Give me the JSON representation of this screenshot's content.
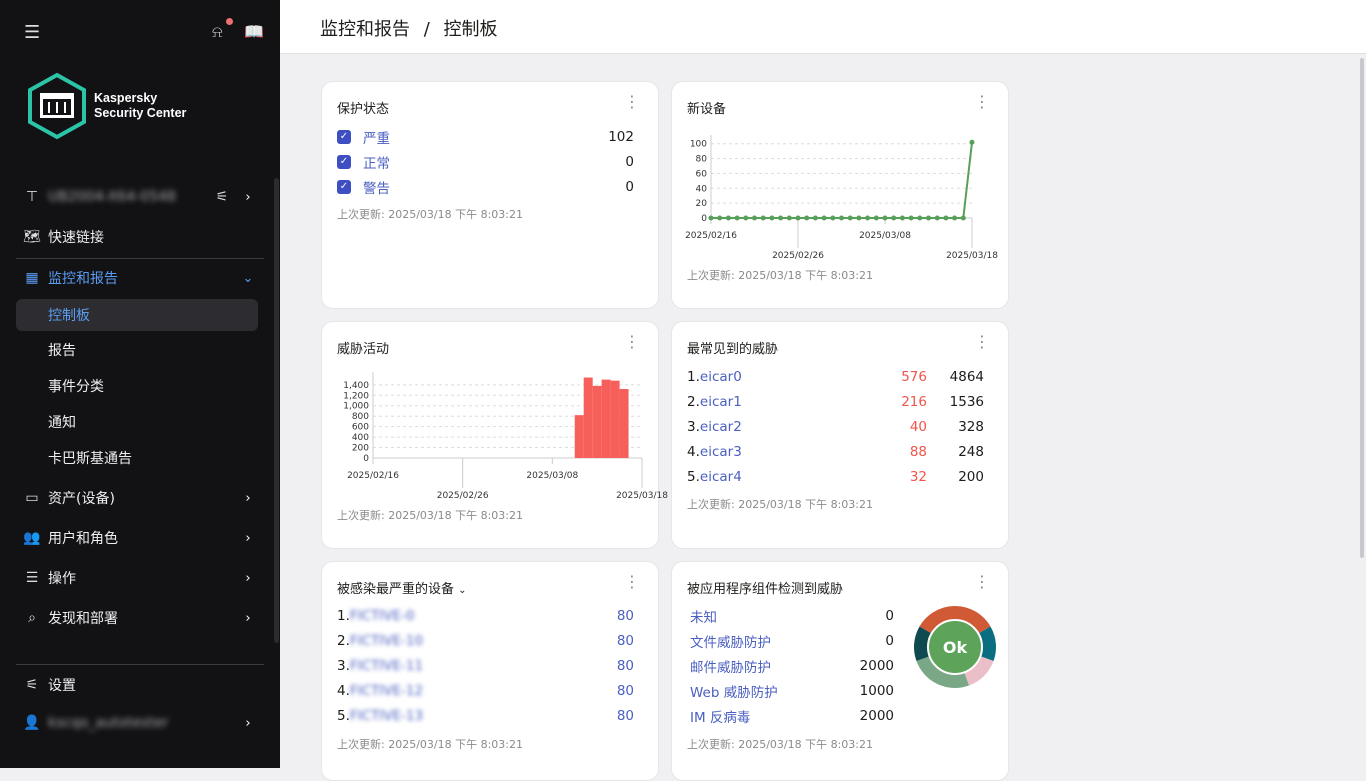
{
  "sidebar": {
    "server": "UB2004-X64-0548",
    "brand": [
      "Kaspersky",
      "Security Center"
    ],
    "items": [
      {
        "label": "快速链接",
        "icon": "map-icon"
      },
      {
        "label": "监控和报告",
        "icon": "dashboard-icon",
        "expanded": true
      },
      {
        "label": "控制板",
        "active": true
      },
      {
        "label": "报告"
      },
      {
        "label": "事件分类"
      },
      {
        "label": "通知"
      },
      {
        "label": "卡巴斯基通告"
      },
      {
        "label": "资产(设备)",
        "icon": "monitor-icon"
      },
      {
        "label": "用户和角色",
        "icon": "users-icon"
      },
      {
        "label": "操作",
        "icon": "server-icon"
      },
      {
        "label": "发现和部署",
        "icon": "search-icon"
      },
      {
        "label": "设置",
        "icon": "settings-icon"
      }
    ],
    "user": "kscqo_autotester",
    "accent": "#5b9cf0"
  },
  "header": {
    "breadcrumb": [
      "监控和报告",
      "控制板"
    ],
    "separator": "/"
  },
  "updated": "上次更新:  2025/03/18 下午 8:03:21",
  "protection": {
    "title": "保护状态",
    "rows": [
      {
        "label": "严重",
        "value": "102"
      },
      {
        "label": "正常",
        "value": "0"
      },
      {
        "label": "警告",
        "value": "0"
      }
    ]
  },
  "threats_top": {
    "title": "最常见到的威胁",
    "rows": [
      {
        "n": "1.",
        "name": "eicar0",
        "a": "576",
        "b": "4864"
      },
      {
        "n": "2.",
        "name": "eicar1",
        "a": "216",
        "b": "1536"
      },
      {
        "n": "3.",
        "name": "eicar2",
        "a": "40",
        "b": "328"
      },
      {
        "n": "4.",
        "name": "eicar3",
        "a": "88",
        "b": "248"
      },
      {
        "n": "5.",
        "name": "eicar4",
        "a": "32",
        "b": "200"
      }
    ]
  },
  "infected": {
    "title": "被感染最严重的设备",
    "rows": [
      {
        "n": "1.",
        "name": "FICTIVE-0",
        "v": "80"
      },
      {
        "n": "2.",
        "name": "FICTIVE-10",
        "v": "80"
      },
      {
        "n": "3.",
        "name": "FICTIVE-11",
        "v": "80"
      },
      {
        "n": "4.",
        "name": "FICTIVE-12",
        "v": "80"
      },
      {
        "n": "5.",
        "name": "FICTIVE-13",
        "v": "80"
      }
    ]
  },
  "components": {
    "title": "被应用程序组件检测到威胁",
    "status": "Ok",
    "rows": [
      {
        "label": "未知",
        "v": "0"
      },
      {
        "label": "文件威胁防护",
        "v": "0"
      },
      {
        "label": "邮件威胁防护",
        "v": "2000"
      },
      {
        "label": "Web 威胁防护",
        "v": "1000"
      },
      {
        "label": "IM 反病毒",
        "v": "2000"
      }
    ],
    "ring_colors": [
      "#d05a35",
      "#0a6e80",
      "#ebbfc8",
      "#7aa886",
      "#0e4a50"
    ]
  },
  "chart_data": [
    {
      "type": "line",
      "title": "新设备",
      "color": "#58a05a",
      "x": [
        "2025/02/16",
        "2025/02/17",
        "2025/02/18",
        "2025/02/19",
        "2025/02/20",
        "2025/02/21",
        "2025/02/22",
        "2025/02/23",
        "2025/02/24",
        "2025/02/25",
        "2025/02/26",
        "2025/02/27",
        "2025/02/28",
        "2025/03/01",
        "2025/03/02",
        "2025/03/03",
        "2025/03/04",
        "2025/03/05",
        "2025/03/06",
        "2025/03/07",
        "2025/03/08",
        "2025/03/09",
        "2025/03/10",
        "2025/03/11",
        "2025/03/12",
        "2025/03/13",
        "2025/03/14",
        "2025/03/15",
        "2025/03/16",
        "2025/03/17",
        "2025/03/18"
      ],
      "y": [
        0,
        0,
        0,
        0,
        0,
        0,
        0,
        0,
        0,
        0,
        0,
        0,
        0,
        0,
        0,
        0,
        0,
        0,
        0,
        0,
        0,
        0,
        0,
        0,
        0,
        0,
        0,
        0,
        0,
        0,
        102
      ],
      "yticks": [
        "0",
        "20",
        "40",
        "60",
        "80",
        "100"
      ],
      "ylim": [
        0,
        105
      ],
      "xticks": [
        "2025/02/16",
        "2025/02/26",
        "2025/03/08",
        "2025/03/18"
      ],
      "grid": true
    },
    {
      "type": "bar",
      "title": "威胁活动",
      "color": "#f7605a",
      "x": [
        "2025/03/11",
        "2025/03/12",
        "2025/03/13",
        "2025/03/14",
        "2025/03/15",
        "2025/03/16"
      ],
      "values": [
        820,
        1540,
        1380,
        1500,
        1480,
        1320
      ],
      "yticks": [
        "0",
        "200",
        "400",
        "600",
        "800",
        "1,000",
        "1,200",
        "1,400"
      ],
      "ylim": [
        0,
        1550
      ],
      "xticks": [
        "2025/02/16",
        "2025/02/26",
        "2025/03/08",
        "2025/03/18"
      ],
      "grid": true
    }
  ]
}
